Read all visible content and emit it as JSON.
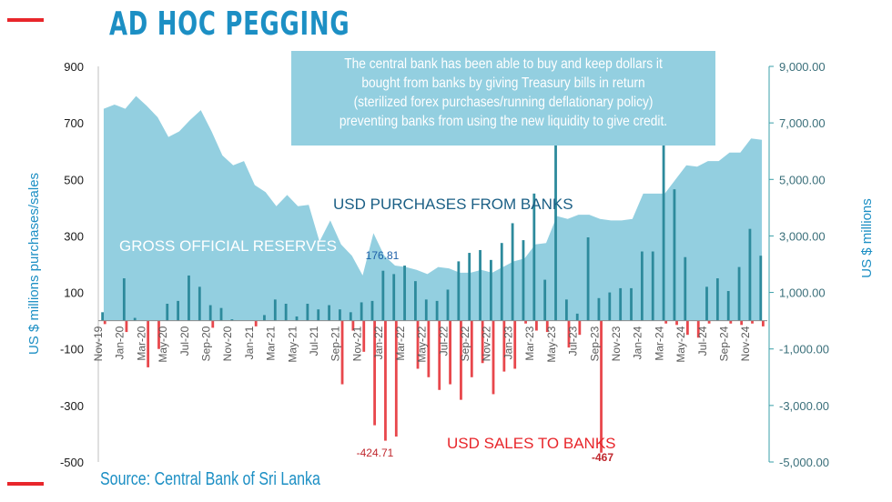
{
  "header": {
    "title": "AD HOC PEGGING"
  },
  "callout": {
    "lines": [
      "The central bank has been able to buy and keep dollars it",
      "bought from banks by giving Treasury bills in return",
      "(sterilized forex purchases/running deflationary policy)",
      "preventing banks from using the new liquidity to give credit."
    ]
  },
  "footer": {
    "source": "Source: Central Bank of Sri Lanka"
  },
  "colors": {
    "accent": "#e8262b",
    "title": "#1c8fc4",
    "area": "#93cfe0",
    "purchase_bar": "#2d8a9c",
    "sale_bar": "#e8474c",
    "axis_text": "#1c8fc4"
  },
  "chart_data": {
    "type": "bar",
    "title": "AD HOC PEGGING",
    "xlabel": "",
    "ylabel": "US $ millions purchases/sales",
    "y2label": "US $ millions",
    "ylim": [
      -500,
      900
    ],
    "y2lim": [
      -5000,
      9000
    ],
    "yticks": [
      "900",
      "700",
      "500",
      "300",
      "100",
      "-100",
      "-300",
      "-500"
    ],
    "y2ticks": [
      "9,000.00",
      "7,000.00",
      "5,000.00",
      "3,000.00",
      "1,000.00",
      "-1,000.00",
      "-3,000.00",
      "-5,000.00"
    ],
    "categories": [
      "Nov-19",
      "Dec-19",
      "Jan-20",
      "Feb-20",
      "Mar-20",
      "Apr-20",
      "May-20",
      "Jun-20",
      "Jul-20",
      "Aug-20",
      "Sep-20",
      "Oct-20",
      "Nov-20",
      "Dec-20",
      "Jan-21",
      "Feb-21",
      "Mar-21",
      "Apr-21",
      "May-21",
      "Jun-21",
      "Jul-21",
      "Aug-21",
      "Sep-21",
      "Oct-21",
      "Nov-21",
      "Dec-21",
      "Jan-22",
      "Feb-22",
      "Mar-22",
      "Apr-22",
      "May-22",
      "Jun-22",
      "Jul-22",
      "Aug-22",
      "Sep-22",
      "Oct-22",
      "Nov-22",
      "Dec-22",
      "Jan-23",
      "Feb-23",
      "Mar-23",
      "Apr-23",
      "May-23",
      "Jun-23",
      "Jul-23",
      "Aug-23",
      "Sep-23",
      "Oct-23",
      "Nov-23",
      "Dec-23",
      "Jan-24",
      "Feb-24",
      "Mar-24",
      "Apr-24",
      "May-24",
      "Jun-24",
      "Jul-24",
      "Aug-24",
      "Sep-24",
      "Oct-24",
      "Nov-24",
      "Dec-24"
    ],
    "x_tick_labels": [
      "Nov-19",
      "Jan-20",
      "Mar-20",
      "May-20",
      "Jul-20",
      "Sep-20",
      "Nov-20",
      "Jan-21",
      "Mar-21",
      "May-21",
      "Jul-21",
      "Sep-21",
      "Nov-21",
      "Jan-22",
      "Mar-22",
      "May-22",
      "Jul-22",
      "Sep-22",
      "Nov-22",
      "Jan-23",
      "Mar-23",
      "May-23",
      "Jul-23",
      "Sep-23",
      "Nov-23",
      "Jan-24",
      "Mar-24",
      "May-24",
      "Jul-24",
      "Sep-24",
      "Nov-24"
    ],
    "series": [
      {
        "name": "USD PURCHASES FROM BANKS",
        "axis": "left",
        "type": "bar",
        "values": [
          30,
          0,
          150,
          10,
          0,
          0,
          60,
          70,
          160,
          120,
          55,
          45,
          5,
          0,
          0,
          20,
          75,
          60,
          15,
          60,
          40,
          55,
          40,
          30,
          65,
          70,
          176.81,
          165,
          195,
          140,
          75,
          70,
          110,
          210,
          240,
          250,
          215,
          275,
          345,
          285,
          450,
          145,
          620,
          75,
          25,
          295,
          80,
          100,
          115,
          115,
          245,
          245,
          630,
          465,
          225,
          0,
          120,
          150,
          105,
          190,
          325,
          230
        ]
      },
      {
        "name": "USD SALES TO BANKS",
        "axis": "left",
        "type": "bar",
        "values": [
          -12,
          0,
          -40,
          0,
          -165,
          -100,
          0,
          0,
          0,
          0,
          -25,
          0,
          0,
          0,
          -20,
          0,
          0,
          0,
          0,
          0,
          0,
          0,
          -225,
          -35,
          -110,
          -370,
          -424.71,
          -410,
          0,
          -170,
          -200,
          -245,
          -225,
          -280,
          -200,
          -150,
          -260,
          -180,
          -170,
          -10,
          -35,
          -40,
          0,
          -95,
          -50,
          0,
          -467,
          0,
          0,
          0,
          0,
          0,
          -10,
          -15,
          -50,
          -60,
          -10,
          0,
          -10,
          -15,
          -10,
          -20
        ]
      },
      {
        "name": "GROSS OFFICIAL RESERVES",
        "axis": "right",
        "type": "area",
        "values": [
          7500,
          7650,
          7500,
          7950,
          7600,
          7200,
          6500,
          6700,
          7100,
          7450,
          6700,
          5850,
          5500,
          5650,
          4800,
          4550,
          4050,
          4450,
          4050,
          4100,
          2800,
          3550,
          2700,
          2300,
          1600,
          3100,
          2300,
          1950,
          1900,
          1800,
          1650,
          1900,
          1850,
          1700,
          1700,
          1800,
          1700,
          1900,
          2100,
          2200,
          2700,
          2750,
          3700,
          3600,
          3750,
          3750,
          3600,
          3550,
          3550,
          3600,
          4500,
          4500,
          4500,
          5000,
          5500,
          5450,
          5650,
          5650,
          5950,
          5950,
          6450,
          6400
        ]
      }
    ],
    "series_labels": {
      "purchases": "USD PURCHASES FROM BANKS",
      "reserves": "GROSS OFFICIAL RESERVES",
      "sales": "USD SALES TO BANKS"
    },
    "data_labels": {
      "purchase_jan22": "176.81",
      "sale_jan22": "-424.71",
      "sale_sep23": "-467"
    }
  }
}
